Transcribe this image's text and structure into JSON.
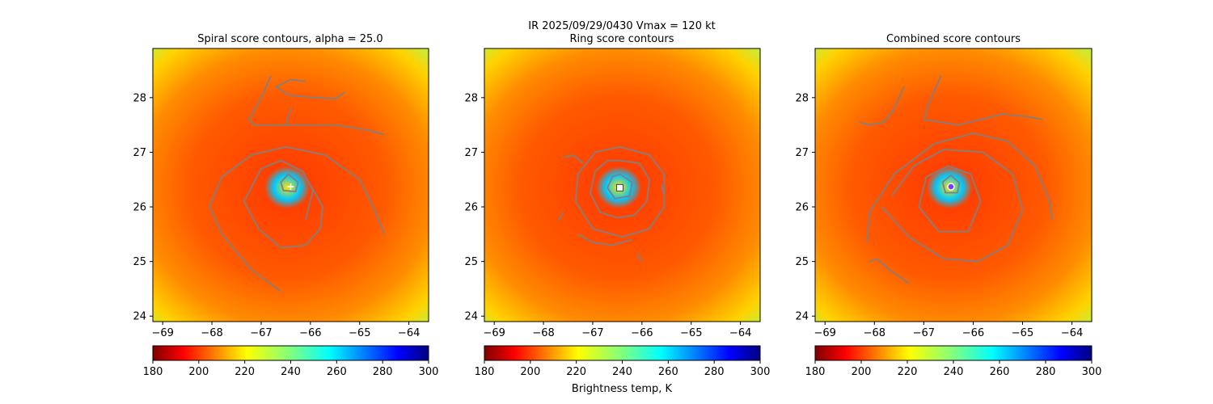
{
  "chart_data": {
    "type": "heatmap",
    "suptitle": "IR  2025/09/29/0430    Vmax = 120 kt",
    "colorbar_label": "Brightness temp, K",
    "colormap": "jet_r",
    "clim": [
      180,
      300
    ],
    "colorbar_ticks": [
      180,
      200,
      220,
      240,
      260,
      280,
      300
    ],
    "xlim": [
      -69.2,
      -63.6
    ],
    "ylim": [
      23.9,
      28.9
    ],
    "xticks": [
      -69,
      -68,
      -67,
      -66,
      -65,
      -64
    ],
    "yticks": [
      24,
      25,
      26,
      27,
      28
    ],
    "storm_center": {
      "lon": -66.45,
      "lat": 26.35
    },
    "contour_color": "#808080",
    "panels": [
      {
        "title": "Spiral score contours, alpha = 25.0",
        "marker": "cross",
        "marker_lon": -66.4,
        "marker_lat": 26.37,
        "contours": [
          [
            [
              -66.1,
              28.3
            ],
            [
              -66.4,
              28.33
            ],
            [
              -66.7,
              28.2
            ],
            [
              -66.45,
              28.05
            ],
            [
              -65.9,
              28.0
            ],
            [
              -65.5,
              27.98
            ],
            [
              -65.3,
              28.1
            ]
          ],
          [
            [
              -66.8,
              28.4
            ],
            [
              -67.0,
              28.0
            ],
            [
              -67.25,
              27.6
            ],
            [
              -67.15,
              27.5
            ],
            [
              -66.5,
              27.5
            ],
            [
              -65.5,
              27.5
            ],
            [
              -64.8,
              27.4
            ],
            [
              -64.5,
              27.32
            ]
          ],
          [
            [
              -66.4,
              27.8
            ],
            [
              -66.5,
              27.5
            ]
          ],
          [
            [
              -66.6,
              24.45
            ],
            [
              -67.2,
              24.85
            ],
            [
              -67.8,
              25.5
            ],
            [
              -68.05,
              26.0
            ],
            [
              -67.8,
              26.55
            ],
            [
              -67.2,
              26.95
            ],
            [
              -66.5,
              27.1
            ],
            [
              -65.7,
              26.95
            ],
            [
              -65.0,
              26.5
            ],
            [
              -64.7,
              25.95
            ],
            [
              -64.5,
              25.5
            ]
          ],
          [
            [
              -66.1,
              25.75
            ],
            [
              -65.95,
              26.3
            ],
            [
              -66.15,
              26.65
            ],
            [
              -66.6,
              26.85
            ],
            [
              -67.0,
              26.7
            ],
            [
              -67.35,
              26.1
            ],
            [
              -67.05,
              25.6
            ],
            [
              -66.6,
              25.25
            ],
            [
              -66.1,
              25.3
            ],
            [
              -65.8,
              25.6
            ],
            [
              -65.75,
              26.0
            ],
            [
              -66.0,
              26.4
            ]
          ],
          [
            [
              -66.45,
              26.6
            ],
            [
              -66.25,
              26.45
            ],
            [
              -66.3,
              26.28
            ],
            [
              -66.55,
              26.3
            ],
            [
              -66.6,
              26.45
            ],
            [
              -66.45,
              26.6
            ]
          ]
        ]
      },
      {
        "title": "Ring score contours",
        "marker": "square",
        "marker_lon": -66.45,
        "marker_lat": 26.35,
        "contours": [
          [
            [
              -66.45,
              26.85
            ],
            [
              -66.05,
              26.8
            ],
            [
              -65.85,
              26.5
            ],
            [
              -65.9,
              26.1
            ],
            [
              -66.15,
              25.85
            ],
            [
              -66.5,
              25.8
            ],
            [
              -66.85,
              25.9
            ],
            [
              -67.05,
              26.25
            ],
            [
              -66.95,
              26.65
            ],
            [
              -66.7,
              26.85
            ],
            [
              -66.45,
              26.85
            ]
          ],
          [
            [
              -66.45,
              27.1
            ],
            [
              -65.85,
              26.95
            ],
            [
              -65.55,
              26.6
            ],
            [
              -65.55,
              26.0
            ],
            [
              -65.85,
              25.6
            ],
            [
              -66.4,
              25.45
            ],
            [
              -67.0,
              25.6
            ],
            [
              -67.35,
              26.1
            ],
            [
              -67.3,
              26.6
            ],
            [
              -66.95,
              27.0
            ],
            [
              -66.45,
              27.1
            ]
          ],
          [
            [
              -66.45,
              26.6
            ],
            [
              -66.2,
              26.45
            ],
            [
              -66.25,
              26.2
            ],
            [
              -66.55,
              26.15
            ],
            [
              -66.7,
              26.35
            ],
            [
              -66.6,
              26.55
            ],
            [
              -66.45,
              26.6
            ]
          ],
          [
            [
              -67.6,
              26.9
            ],
            [
              -67.4,
              26.95
            ],
            [
              -67.2,
              26.8
            ]
          ],
          [
            [
              -67.3,
              25.5
            ],
            [
              -67.0,
              25.35
            ],
            [
              -66.6,
              25.3
            ],
            [
              -66.2,
              25.4
            ]
          ],
          [
            [
              -66.1,
              25.15
            ],
            [
              -66.0,
              25.0
            ]
          ],
          [
            [
              -67.6,
              25.9
            ],
            [
              -67.7,
              25.75
            ]
          ],
          [
            [
              -65.6,
              26.4
            ],
            [
              -65.55,
              26.2
            ]
          ]
        ]
      },
      {
        "title": "Combined score contours",
        "marker": "circle",
        "marker_lon": -66.45,
        "marker_lat": 26.37,
        "contours": [
          [
            [
              -66.65,
              28.4
            ],
            [
              -66.9,
              27.9
            ],
            [
              -67.0,
              27.6
            ],
            [
              -66.3,
              27.5
            ],
            [
              -65.4,
              27.7
            ],
            [
              -64.9,
              27.65
            ],
            [
              -64.6,
              27.6
            ]
          ],
          [
            [
              -67.4,
              28.2
            ],
            [
              -67.6,
              27.8
            ],
            [
              -67.8,
              27.55
            ],
            [
              -68.1,
              27.5
            ],
            [
              -68.3,
              27.55
            ]
          ],
          [
            [
              -67.3,
              24.6
            ],
            [
              -67.7,
              24.85
            ],
            [
              -67.95,
              25.05
            ],
            [
              -68.1,
              25.0
            ]
          ],
          [
            [
              -68.15,
              25.35
            ],
            [
              -68.1,
              25.9
            ],
            [
              -67.6,
              26.6
            ],
            [
              -66.8,
              27.15
            ],
            [
              -66.0,
              27.35
            ],
            [
              -65.3,
              27.2
            ],
            [
              -64.75,
              26.75
            ],
            [
              -64.45,
              26.1
            ],
            [
              -64.4,
              25.75
            ]
          ],
          [
            [
              -67.85,
              26.0
            ],
            [
              -67.3,
              25.45
            ],
            [
              -66.6,
              25.05
            ],
            [
              -65.9,
              25.0
            ],
            [
              -65.3,
              25.3
            ],
            [
              -65.0,
              25.95
            ],
            [
              -65.2,
              26.6
            ],
            [
              -65.8,
              27.0
            ],
            [
              -66.6,
              27.05
            ],
            [
              -67.2,
              26.75
            ],
            [
              -67.65,
              26.2
            ]
          ],
          [
            [
              -66.1,
              25.55
            ],
            [
              -66.7,
              25.55
            ],
            [
              -67.1,
              26.0
            ],
            [
              -66.95,
              26.55
            ],
            [
              -66.5,
              26.75
            ],
            [
              -66.05,
              26.6
            ],
            [
              -65.85,
              26.1
            ],
            [
              -66.1,
              25.55
            ]
          ],
          [
            [
              -66.45,
              26.58
            ],
            [
              -66.28,
              26.44
            ],
            [
              -66.32,
              26.26
            ],
            [
              -66.56,
              26.26
            ],
            [
              -66.62,
              26.45
            ],
            [
              -66.45,
              26.58
            ]
          ]
        ]
      }
    ]
  }
}
